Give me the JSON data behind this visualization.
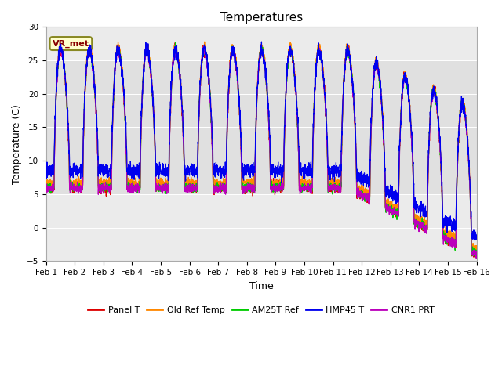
{
  "title": "Temperatures",
  "xlabel": "Time",
  "ylabel": "Temperature (C)",
  "ylim": [
    -5,
    30
  ],
  "xlim": [
    0,
    15
  ],
  "xtick_positions": [
    0,
    1,
    2,
    3,
    4,
    5,
    6,
    7,
    8,
    9,
    10,
    11,
    12,
    13,
    14,
    15
  ],
  "xtick_labels": [
    "Feb 1",
    "Feb 2",
    "Feb 3",
    "Feb 4",
    "Feb 5",
    "Feb 6",
    "Feb 7",
    "Feb 8",
    "Feb 9",
    "Feb 10",
    "Feb 11",
    "Feb 12",
    "Feb 13",
    "Feb 14",
    "Feb 15",
    "Feb 16"
  ],
  "ytick_values": [
    -5,
    0,
    5,
    10,
    15,
    20,
    25,
    30
  ],
  "colors": {
    "panel": "#dd0000",
    "old_ref": "#ff8800",
    "am25t": "#00cc00",
    "hmp45": "#0000ee",
    "cnr1": "#bb00bb"
  },
  "series_labels": [
    "Panel T",
    "Old Ref Temp",
    "AM25T Ref",
    "HMP45 T",
    "CNR1 PRT"
  ],
  "annotation_text": "VR_met",
  "annotation_fg": "#880000",
  "annotation_bg": "#ffffcc",
  "annotation_edge": "#888822",
  "shading_ymin": 5,
  "shading_ymax": 25,
  "shading_color": "#e0e0e0",
  "plot_bg": "#ebebeb",
  "fig_bg": "#ffffff",
  "title_fontsize": 11,
  "axis_label_fontsize": 9,
  "tick_fontsize": 7.5,
  "line_width": 0.9,
  "legend_fontsize": 8
}
